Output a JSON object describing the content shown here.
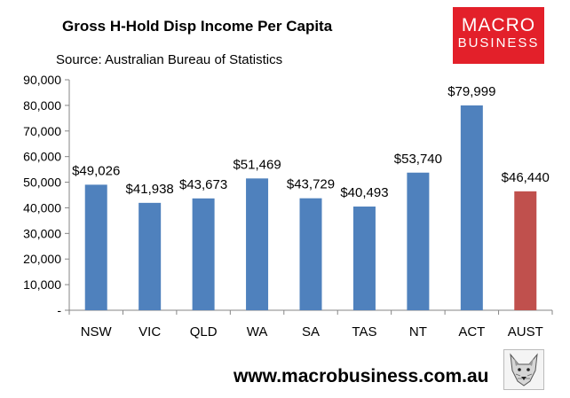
{
  "chart_data": {
    "type": "bar",
    "title": "Gross H-Hold Disp Income Per Capita",
    "subtitle": "Source: Australian Bureau of Statistics",
    "categories": [
      "NSW",
      "VIC",
      "QLD",
      "WA",
      "SA",
      "TAS",
      "NT",
      "ACT",
      "AUST"
    ],
    "values": [
      49026,
      41938,
      43673,
      51469,
      43729,
      40493,
      53740,
      79999,
      46440
    ],
    "data_labels": [
      "$49,026",
      "$41,938",
      "$43,673",
      "$51,469",
      "$43,729",
      "$40,493",
      "$53,740",
      "$79,999",
      "$46,440"
    ],
    "ylim": [
      0,
      90000
    ],
    "yticks": [
      0,
      10000,
      20000,
      30000,
      40000,
      50000,
      60000,
      70000,
      80000,
      90000
    ],
    "ytick_labels": [
      "-",
      "10,000",
      "20,000",
      "30,000",
      "40,000",
      "50,000",
      "60,000",
      "70,000",
      "80,000",
      "90,000"
    ],
    "colors": {
      "bar": "#4f81bd",
      "highlight": "#c0504d"
    },
    "highlight_category": "AUST",
    "grid": false,
    "legend": "none"
  },
  "logo": {
    "line1": "MACRO",
    "line2": "BUSINESS"
  },
  "footer": {
    "url": "www.macrobusiness.com.au",
    "mascot_icon": "wolf-icon"
  }
}
